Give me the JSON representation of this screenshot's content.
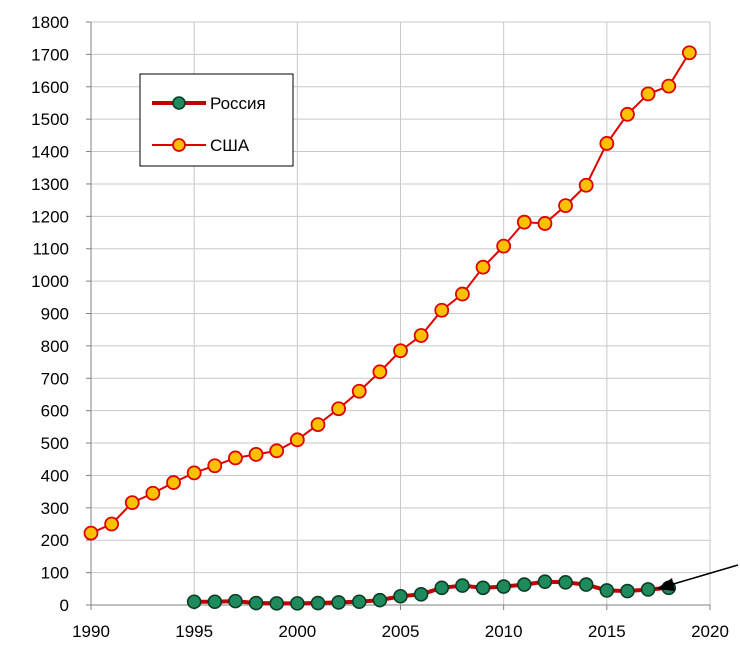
{
  "chart_data": {
    "type": "line",
    "title": "",
    "xlabel": "",
    "ylabel": "",
    "xlim": [
      1990,
      2020
    ],
    "ylim": [
      0,
      1800
    ],
    "x_ticks": [
      "1990",
      "1995",
      "2000",
      "2005",
      "2010",
      "2015",
      "2020"
    ],
    "y_ticks": [
      "0",
      "100",
      "200",
      "300",
      "400",
      "500",
      "600",
      "700",
      "800",
      "900",
      "1000",
      "1100",
      "1200",
      "1300",
      "1400",
      "1500",
      "1600",
      "1700",
      "1800"
    ],
    "grid": "both",
    "legend_position": "top-left",
    "annotation": "arrow pointing to the Россия series near 2017",
    "series": [
      {
        "name": "Россия",
        "line_color": "#c00000",
        "marker_fill": "#1f8a5b",
        "marker_edge": "#0a3d26",
        "x": [
          1995,
          1996,
          1997,
          1998,
          1999,
          2000,
          2001,
          2002,
          2003,
          2004,
          2005,
          2006,
          2007,
          2008,
          2009,
          2010,
          2011,
          2012,
          2013,
          2014,
          2015,
          2016,
          2017,
          2018
        ],
        "values": [
          10,
          10,
          12,
          6,
          5,
          5,
          6,
          8,
          10,
          15,
          27,
          33,
          53,
          60,
          53,
          57,
          63,
          72,
          70,
          63,
          45,
          43,
          48,
          53
        ]
      },
      {
        "name": "США",
        "line_color": "#e00000",
        "marker_fill": "#ffc000",
        "marker_edge": "#e00000",
        "x": [
          1990,
          1991,
          1992,
          1993,
          1994,
          1995,
          1996,
          1997,
          1998,
          1999,
          2000,
          2001,
          2002,
          2003,
          2004,
          2005,
          2006,
          2007,
          2008,
          2009,
          2010,
          2011,
          2012,
          2013,
          2014,
          2015,
          2016,
          2017,
          2018,
          2019
        ],
        "values": [
          222,
          250,
          316,
          345,
          378,
          408,
          430,
          454,
          465,
          476,
          510,
          557,
          606,
          660,
          720,
          785,
          832,
          910,
          960,
          1043,
          1108,
          1182,
          1178,
          1233,
          1296,
          1425,
          1515,
          1578,
          1602,
          1705
        ]
      }
    ]
  }
}
